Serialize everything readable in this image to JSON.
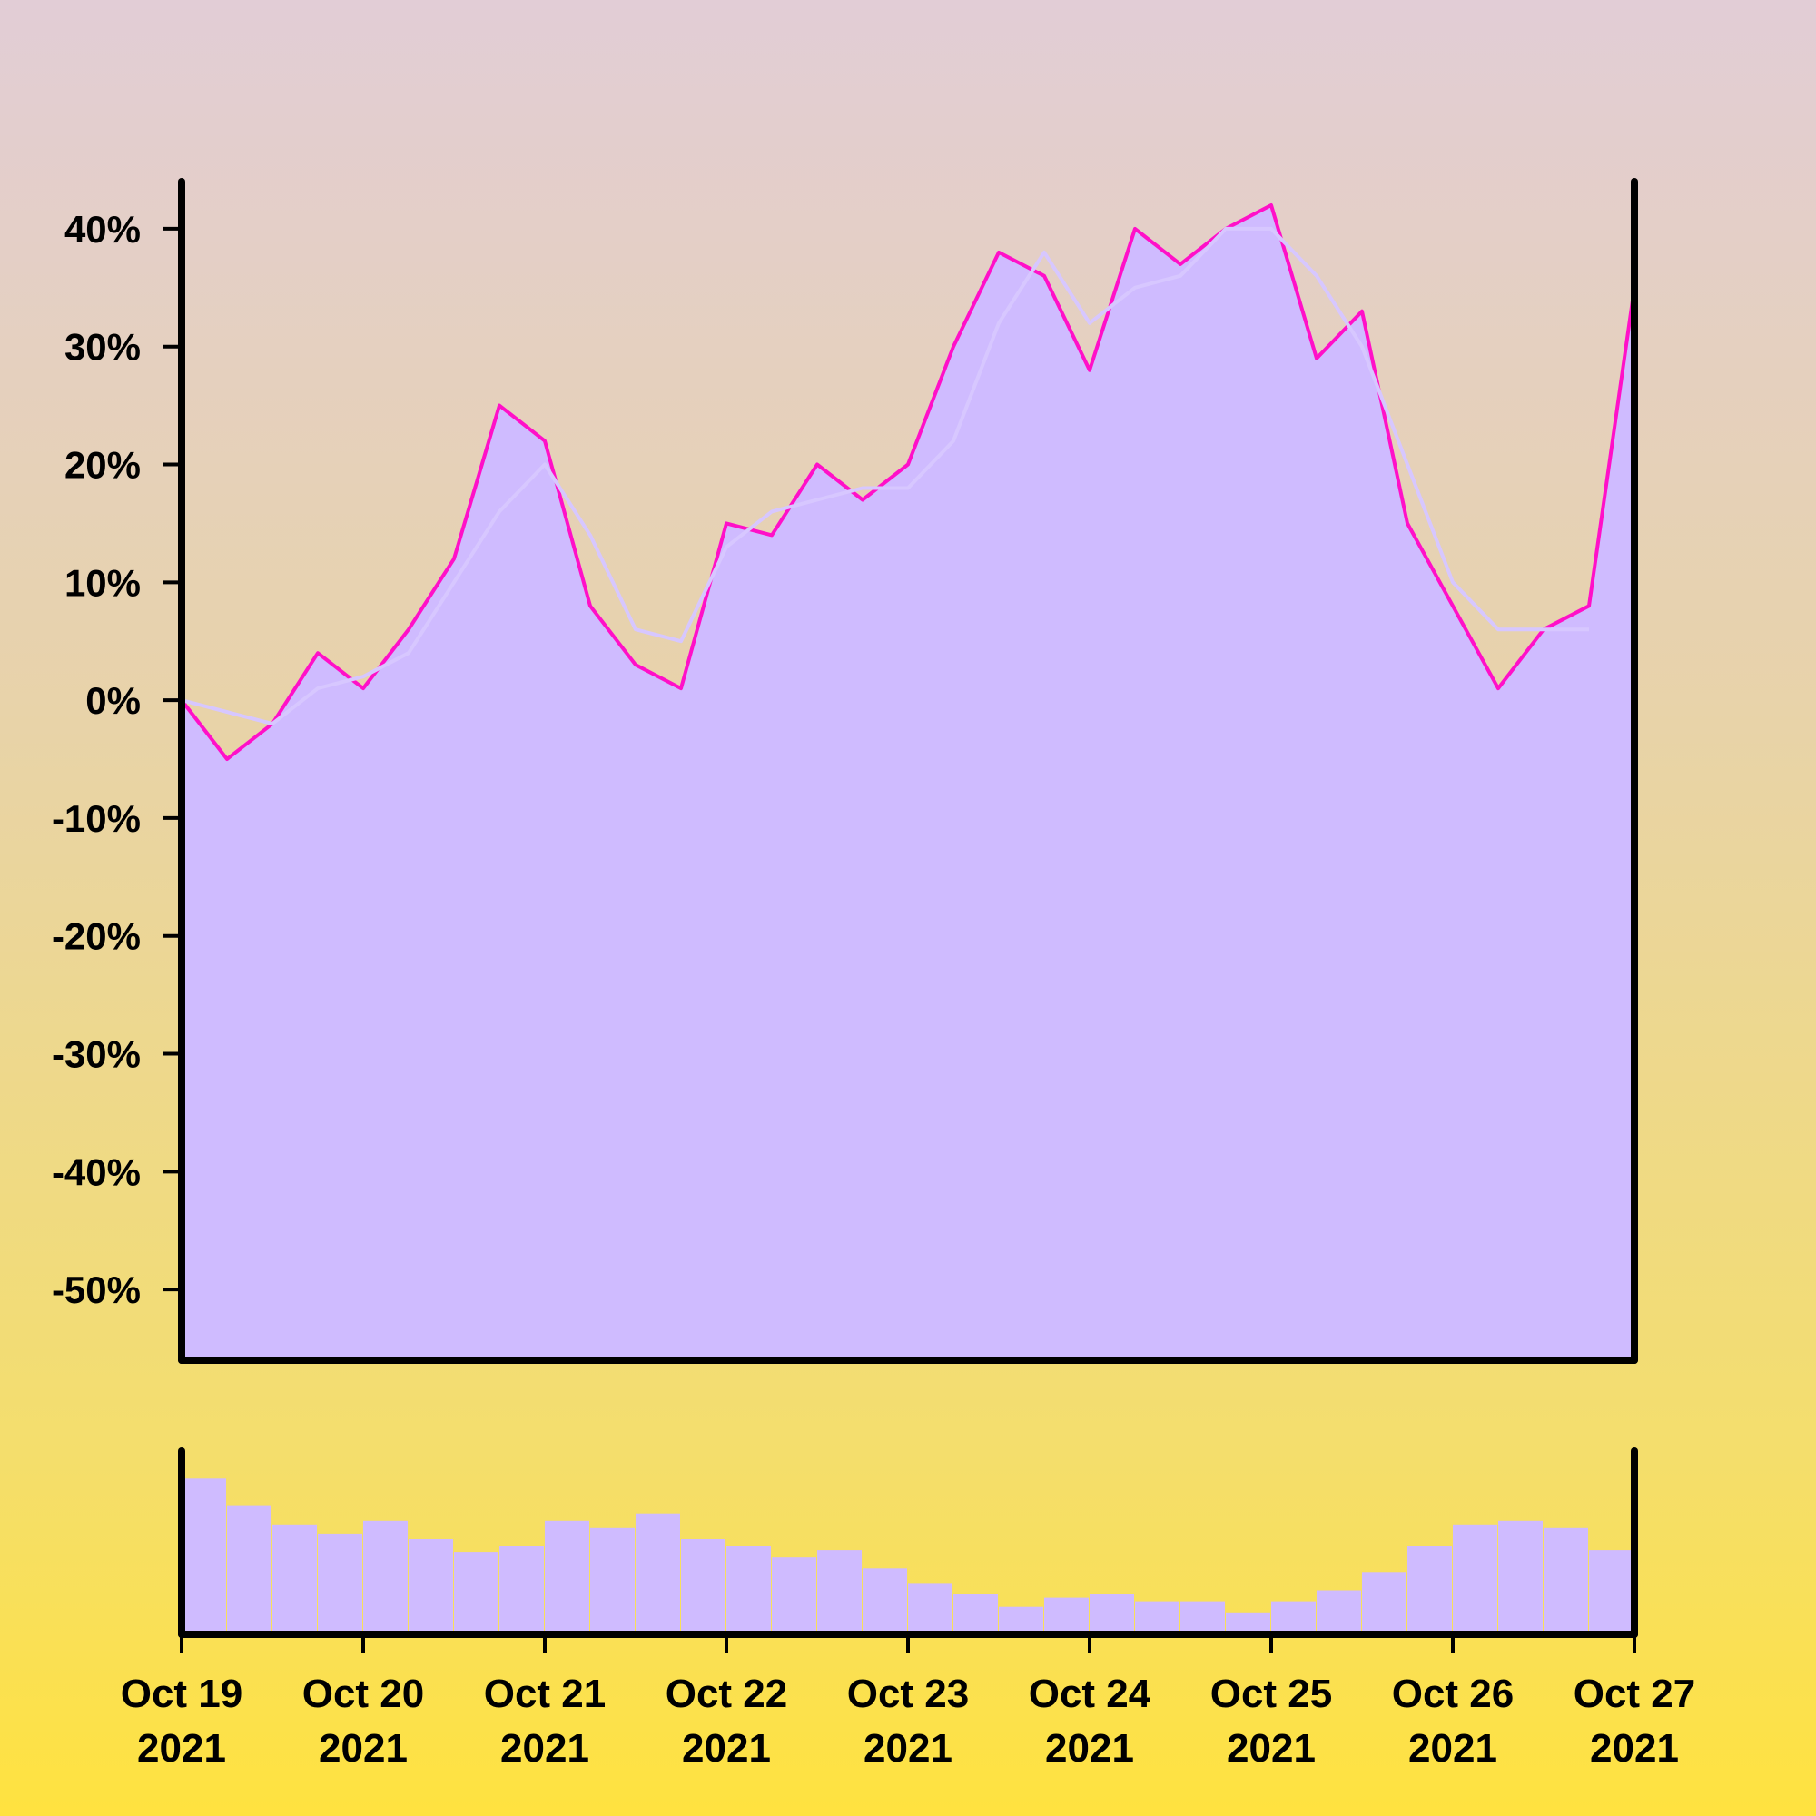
{
  "colors": {
    "background_top": "#e2cdd6",
    "background_bottom": "#ffe23f",
    "area_fill": "#cfbbff",
    "price_line": "#ff10c8",
    "moving_average_line": "#d7c7ff",
    "volume_bars": "#cfbbff",
    "axis": "#000000"
  },
  "chart_data": [
    {
      "type": "area",
      "title": "",
      "xlabel": "",
      "ylabel": "",
      "ylim": [
        -0.56,
        0.44
      ],
      "y_tick_values": [
        0.4,
        0.3,
        0.2,
        0.1,
        0,
        -0.1,
        -0.2,
        -0.3,
        -0.4,
        -0.5
      ],
      "y_tick_labels": [
        "40%",
        "30%",
        "20%",
        "10%",
        "0%",
        "-10%",
        "-20%",
        "-30%",
        "-40%",
        "-50%"
      ],
      "grid": false,
      "legend": "none",
      "x_range": [
        "2021-10-19",
        "2021-10-27"
      ],
      "series": [
        {
          "role": "price",
          "style": "filled area with line",
          "x": [
            "2021-10-19T00:00",
            "2021-10-19T06:00",
            "2021-10-19T12:00",
            "2021-10-19T18:00",
            "2021-10-20T00:00",
            "2021-10-20T06:00",
            "2021-10-20T12:00",
            "2021-10-20T18:00",
            "2021-10-21T00:00",
            "2021-10-21T06:00",
            "2021-10-21T12:00",
            "2021-10-21T18:00",
            "2021-10-22T00:00",
            "2021-10-22T06:00",
            "2021-10-22T12:00",
            "2021-10-22T18:00",
            "2021-10-23T00:00",
            "2021-10-23T06:00",
            "2021-10-23T12:00",
            "2021-10-23T18:00",
            "2021-10-24T00:00",
            "2021-10-24T06:00",
            "2021-10-24T12:00",
            "2021-10-24T18:00",
            "2021-10-25T00:00",
            "2021-10-25T06:00",
            "2021-10-25T12:00",
            "2021-10-25T18:00",
            "2021-10-26T00:00",
            "2021-10-26T06:00",
            "2021-10-26T12:00",
            "2021-10-26T18:00",
            "2021-10-27T00:00"
          ],
          "values": [
            0.0,
            -0.05,
            -0.02,
            0.04,
            0.01,
            0.06,
            0.12,
            0.25,
            0.22,
            0.08,
            0.03,
            0.01,
            0.15,
            0.14,
            0.2,
            0.17,
            0.2,
            0.3,
            0.38,
            0.36,
            0.28,
            0.4,
            0.37,
            0.4,
            0.42,
            0.29,
            0.33,
            0.15,
            0.08,
            0.01,
            0.06,
            0.08,
            0.35
          ]
        },
        {
          "role": "moving average",
          "style": "line",
          "x": [
            "2021-10-19T00:00",
            "2021-10-19T06:00",
            "2021-10-19T12:00",
            "2021-10-19T18:00",
            "2021-10-20T00:00",
            "2021-10-20T06:00",
            "2021-10-20T12:00",
            "2021-10-20T18:00",
            "2021-10-21T00:00",
            "2021-10-21T06:00",
            "2021-10-21T12:00",
            "2021-10-21T18:00",
            "2021-10-22T00:00",
            "2021-10-22T06:00",
            "2021-10-22T12:00",
            "2021-10-22T18:00",
            "2021-10-23T00:00",
            "2021-10-23T06:00",
            "2021-10-23T12:00",
            "2021-10-23T18:00",
            "2021-10-24T00:00",
            "2021-10-24T06:00",
            "2021-10-24T12:00",
            "2021-10-24T18:00",
            "2021-10-25T00:00",
            "2021-10-25T06:00",
            "2021-10-25T12:00",
            "2021-10-25T18:00",
            "2021-10-26T00:00",
            "2021-10-26T06:00",
            "2021-10-26T12:00",
            "2021-10-26T18:00"
          ],
          "values": [
            0.0,
            -0.01,
            -0.02,
            0.01,
            0.02,
            0.04,
            0.1,
            0.16,
            0.2,
            0.14,
            0.06,
            0.05,
            0.13,
            0.16,
            0.17,
            0.18,
            0.18,
            0.22,
            0.32,
            0.38,
            0.32,
            0.35,
            0.36,
            0.4,
            0.4,
            0.36,
            0.3,
            0.2,
            0.1,
            0.06,
            0.06,
            0.06
          ]
        }
      ]
    },
    {
      "type": "bar",
      "role": "volume",
      "title": "",
      "xlabel": "",
      "ylabel": "",
      "ylim": [
        0,
        1
      ],
      "grid": false,
      "legend": "none",
      "x_tick_labels": [
        {
          "line1": "Oct 19",
          "line2": "2021"
        },
        {
          "line1": "Oct 20",
          "line2": "2021"
        },
        {
          "line1": "Oct 21",
          "line2": "2021"
        },
        {
          "line1": "Oct 22",
          "line2": "2021"
        },
        {
          "line1": "Oct 23",
          "line2": "2021"
        },
        {
          "line1": "Oct 24",
          "line2": "2021"
        },
        {
          "line1": "Oct 25",
          "line2": "2021"
        },
        {
          "line1": "Oct 26",
          "line2": "2021"
        },
        {
          "line1": "Oct 27",
          "line2": "2021"
        }
      ],
      "x": [
        "2021-10-19T00:00",
        "2021-10-19T06:00",
        "2021-10-19T12:00",
        "2021-10-19T18:00",
        "2021-10-20T00:00",
        "2021-10-20T06:00",
        "2021-10-20T12:00",
        "2021-10-20T18:00",
        "2021-10-21T00:00",
        "2021-10-21T06:00",
        "2021-10-21T12:00",
        "2021-10-21T18:00",
        "2021-10-22T00:00",
        "2021-10-22T06:00",
        "2021-10-22T12:00",
        "2021-10-22T18:00",
        "2021-10-23T00:00",
        "2021-10-23T06:00",
        "2021-10-23T12:00",
        "2021-10-23T18:00",
        "2021-10-24T00:00",
        "2021-10-24T06:00",
        "2021-10-24T12:00",
        "2021-10-24T18:00",
        "2021-10-25T00:00",
        "2021-10-25T06:00",
        "2021-10-25T12:00",
        "2021-10-25T18:00",
        "2021-10-26T00:00",
        "2021-10-26T06:00",
        "2021-10-26T12:00",
        "2021-10-26T18:00"
      ],
      "values": [
        0.85,
        0.7,
        0.6,
        0.55,
        0.62,
        0.52,
        0.45,
        0.48,
        0.62,
        0.58,
        0.66,
        0.52,
        0.48,
        0.42,
        0.46,
        0.36,
        0.28,
        0.22,
        0.15,
        0.2,
        0.22,
        0.18,
        0.18,
        0.12,
        0.18,
        0.24,
        0.34,
        0.48,
        0.6,
        0.62,
        0.58,
        0.46
      ]
    }
  ]
}
